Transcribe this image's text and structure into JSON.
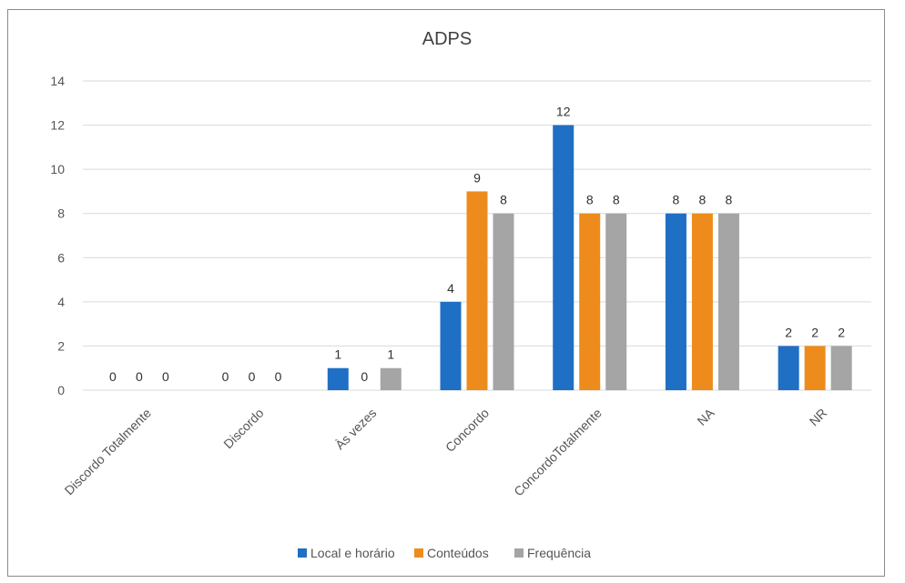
{
  "chart_data": {
    "type": "bar",
    "title": "ADPS",
    "xlabel": "",
    "ylabel": "",
    "ylim": [
      0,
      14
    ],
    "yticks": [
      0,
      2,
      4,
      6,
      8,
      10,
      12,
      14
    ],
    "grid": true,
    "legend_position": "bottom",
    "categories": [
      "Discordo Totalmente",
      "Discordo",
      "Às vezes",
      "Concordo",
      "ConcordoTotalmente",
      "NA",
      "NR"
    ],
    "series": [
      {
        "name": "Local e horário",
        "color": "#1f6fc4",
        "values": [
          0,
          0,
          1,
          4,
          12,
          8,
          2
        ]
      },
      {
        "name": "Conteúdos",
        "color": "#ed8c1c",
        "values": [
          0,
          0,
          0,
          9,
          8,
          8,
          2
        ]
      },
      {
        "name": "Frequência",
        "color": "#a5a5a5",
        "values": [
          0,
          0,
          1,
          8,
          8,
          8,
          2
        ]
      }
    ]
  }
}
